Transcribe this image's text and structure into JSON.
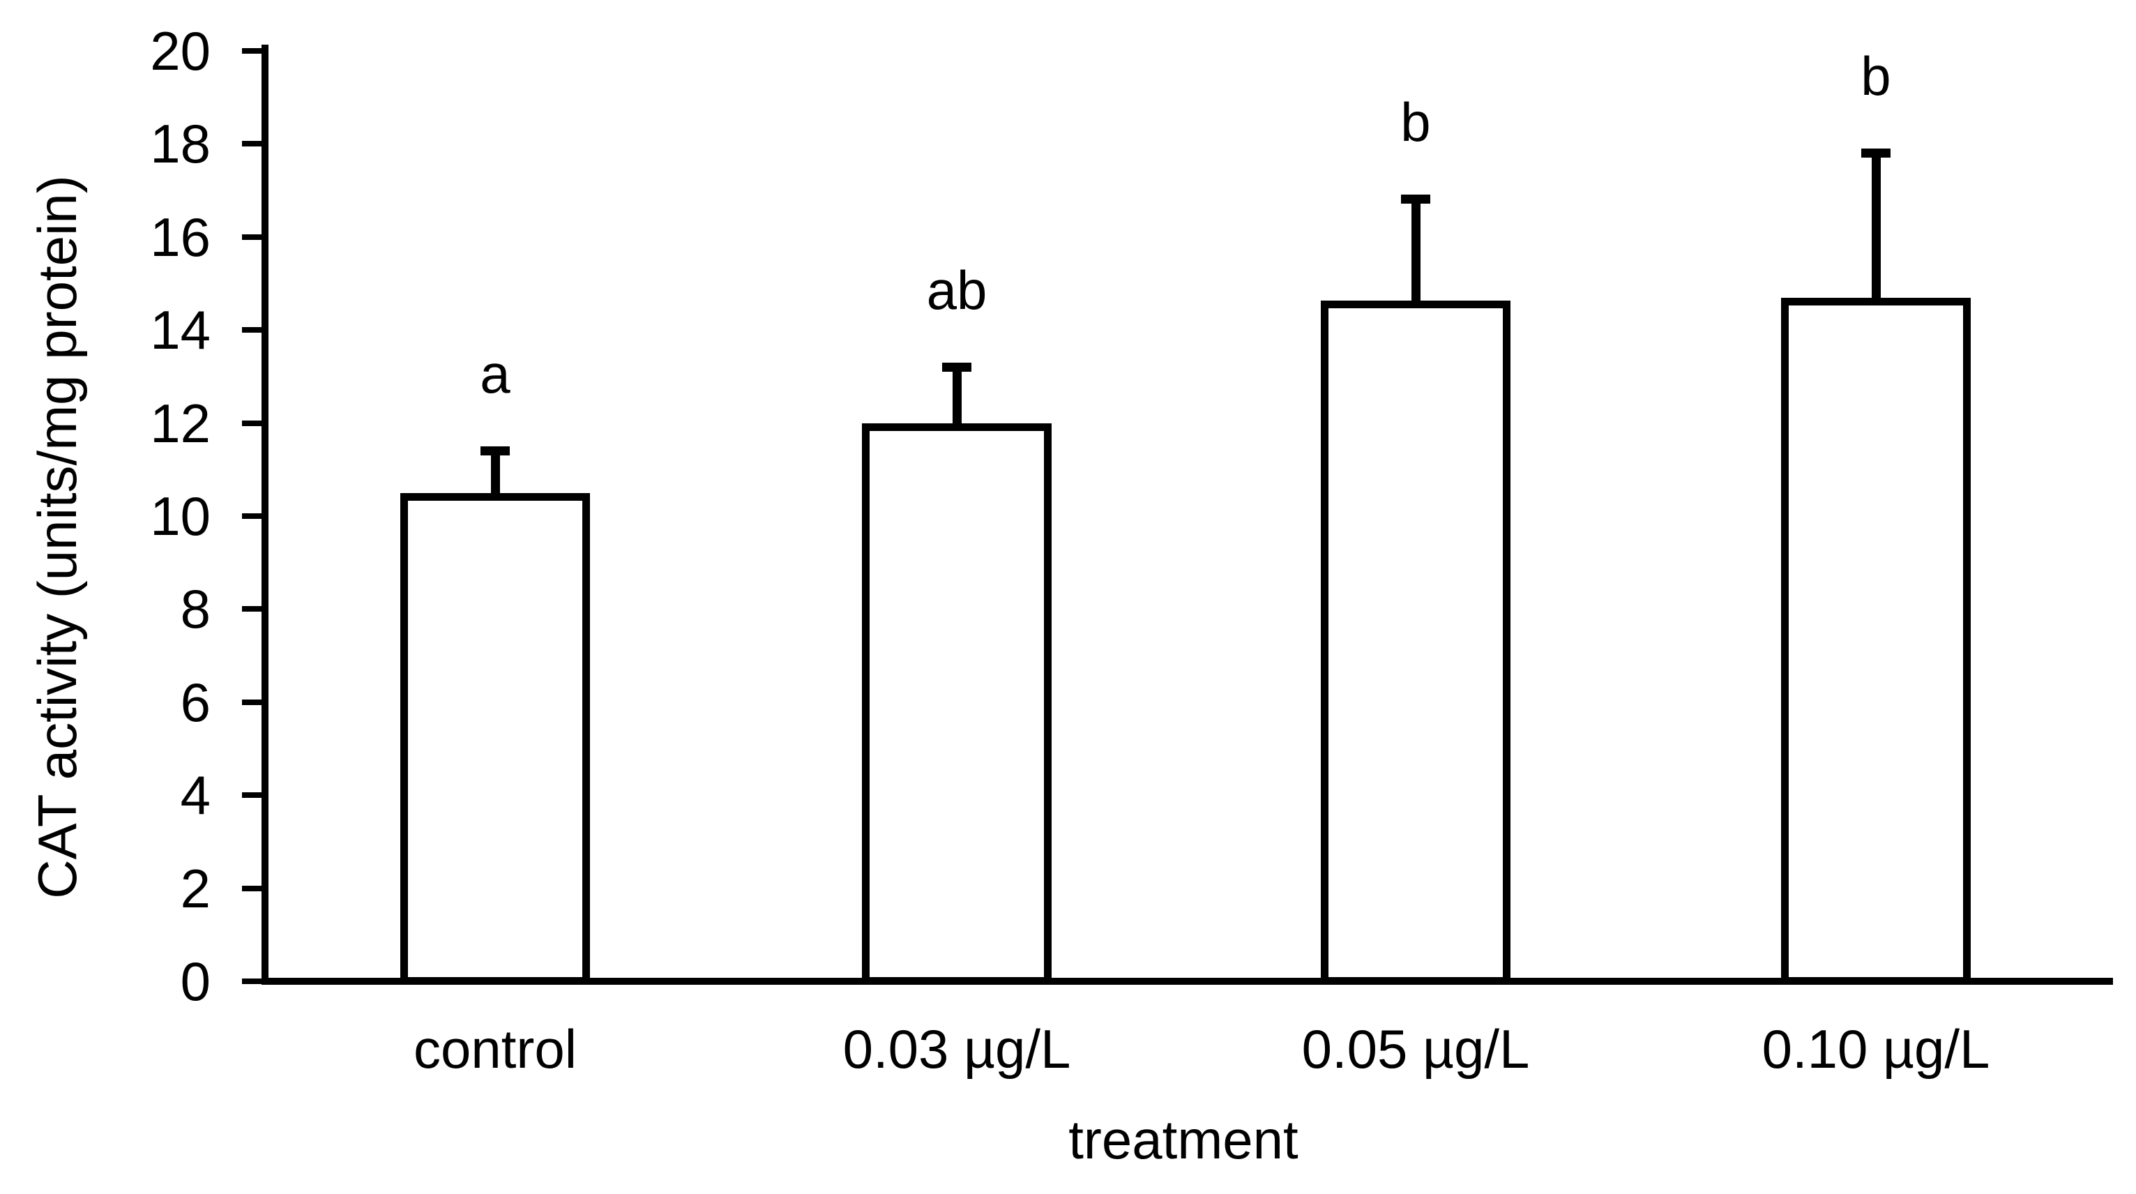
{
  "figure": {
    "background_color": "#ffffff",
    "ink_color": "#000000"
  },
  "chart_data": {
    "type": "bar",
    "title": "",
    "xlabel": "treatment",
    "ylabel": "CAT activity (units/mg protein)",
    "categories": [
      "control",
      "0.03 µg/L",
      "0.05 µg/L",
      "0.10 µg/L"
    ],
    "values": [
      10.4,
      11.9,
      14.55,
      14.6
    ],
    "error_plus": [
      1.0,
      1.3,
      2.25,
      3.2
    ],
    "error_bar_tops": [
      11.4,
      13.2,
      16.8,
      17.8
    ],
    "sig_letters": [
      "a",
      "ab",
      "b",
      "b"
    ],
    "ylim": [
      0,
      20
    ],
    "ytick_step": 2,
    "yticks": [
      0,
      2,
      4,
      6,
      8,
      10,
      12,
      14,
      16,
      18,
      20
    ],
    "grid": false,
    "legend": null,
    "bar_fill": "#ffffff",
    "bar_stroke": "#000000"
  }
}
